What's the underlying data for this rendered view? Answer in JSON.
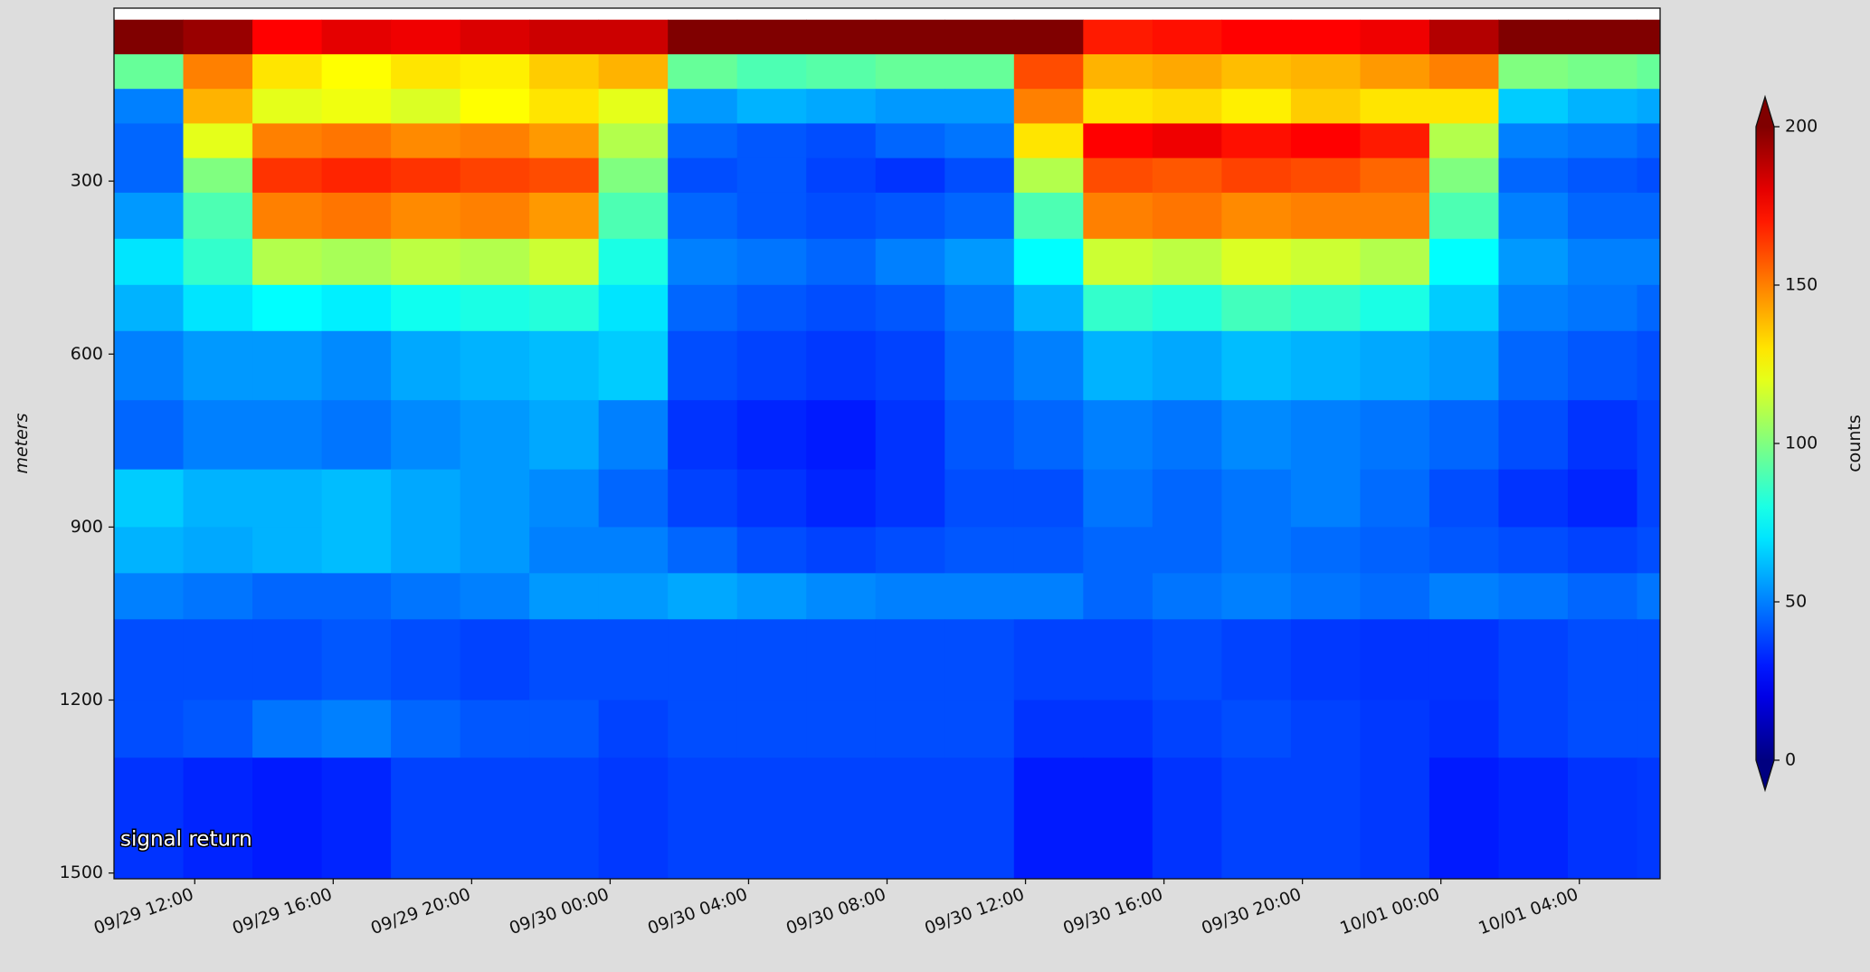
{
  "chart_data": {
    "type": "heatmap",
    "ylabel": "meters",
    "annotation": "signal return",
    "colorbar_label": "counts",
    "colormap": "jet",
    "colorbar_extend": "both",
    "clim": [
      0,
      200
    ],
    "colorbar_ticks": [
      0,
      50,
      100,
      150,
      200
    ],
    "xlim": [
      "09/29 09:40",
      "10/01 06:20"
    ],
    "xticks": [
      "09/29 12:00",
      "09/29 16:00",
      "09/29 20:00",
      "09/30 00:00",
      "09/30 04:00",
      "09/30 08:00",
      "09/30 12:00",
      "09/30 16:00",
      "09/30 20:00",
      "10/01 00:00",
      "10/01 04:00"
    ],
    "ylim": [
      1510,
      0
    ],
    "yticks": [
      300,
      600,
      900,
      1200,
      1500
    ],
    "time_bins": [
      "09/29 09:40",
      "09/29 11:40",
      "09/29 13:40",
      "09/29 15:40",
      "09/29 17:40",
      "09/29 19:40",
      "09/29 21:40",
      "09/29 23:40",
      "09/30 01:40",
      "09/30 03:40",
      "09/30 05:40",
      "09/30 07:40",
      "09/30 09:40",
      "09/30 11:40",
      "09/30 13:40",
      "09/30 15:40",
      "09/30 17:40",
      "09/30 19:40",
      "09/30 21:40",
      "09/30 23:40",
      "10/01 01:40",
      "10/01 03:40",
      "10/01 05:40",
      "10/01 06:20"
    ],
    "depth_bins": [
      20,
      80,
      140,
      200,
      260,
      320,
      400,
      480,
      560,
      680,
      800,
      900,
      980,
      1060,
      1200,
      1300,
      1510
    ],
    "values": [
      [
        200,
        195,
        175,
        180,
        178,
        182,
        185,
        185,
        200,
        200,
        200,
        200,
        200,
        200,
        170,
        172,
        175,
        175,
        178,
        190,
        200,
        200,
        200
      ],
      [
        95,
        150,
        130,
        125,
        130,
        128,
        135,
        140,
        95,
        90,
        92,
        95,
        95,
        160,
        140,
        142,
        138,
        140,
        145,
        150,
        100,
        98,
        95
      ],
      [
        50,
        140,
        120,
        122,
        118,
        125,
        130,
        120,
        55,
        60,
        58,
        55,
        55,
        150,
        130,
        132,
        128,
        135,
        130,
        130,
        65,
        60,
        58
      ],
      [
        45,
        120,
        150,
        152,
        148,
        150,
        145,
        110,
        45,
        42,
        40,
        45,
        48,
        130,
        175,
        178,
        172,
        175,
        170,
        110,
        50,
        48,
        45
      ],
      [
        45,
        100,
        165,
        168,
        165,
        162,
        160,
        100,
        40,
        42,
        38,
        35,
        40,
        110,
        160,
        158,
        162,
        160,
        155,
        100,
        45,
        42,
        40
      ],
      [
        55,
        90,
        150,
        152,
        148,
        150,
        145,
        90,
        45,
        42,
        40,
        42,
        45,
        90,
        150,
        152,
        148,
        150,
        150,
        90,
        50,
        45,
        45
      ],
      [
        70,
        85,
        110,
        108,
        112,
        110,
        115,
        80,
        50,
        48,
        45,
        50,
        55,
        75,
        115,
        112,
        118,
        115,
        110,
        75,
        55,
        50,
        50
      ],
      [
        60,
        70,
        75,
        72,
        78,
        80,
        82,
        70,
        45,
        42,
        40,
        42,
        48,
        60,
        85,
        82,
        88,
        85,
        80,
        65,
        50,
        48,
        45
      ],
      [
        50,
        55,
        55,
        52,
        58,
        60,
        62,
        65,
        40,
        38,
        36,
        38,
        45,
        50,
        60,
        58,
        62,
        60,
        58,
        55,
        45,
        42,
        40
      ],
      [
        45,
        50,
        50,
        48,
        52,
        55,
        58,
        50,
        35,
        32,
        30,
        35,
        42,
        45,
        50,
        48,
        52,
        50,
        48,
        45,
        40,
        35,
        38
      ],
      [
        65,
        60,
        60,
        62,
        58,
        55,
        52,
        45,
        38,
        35,
        32,
        35,
        40,
        40,
        48,
        45,
        48,
        50,
        46,
        40,
        35,
        32,
        38
      ],
      [
        60,
        58,
        60,
        62,
        58,
        55,
        50,
        50,
        45,
        40,
        38,
        40,
        42,
        42,
        45,
        45,
        48,
        46,
        44,
        42,
        40,
        38,
        40
      ],
      [
        50,
        48,
        45,
        45,
        48,
        50,
        55,
        55,
        58,
        55,
        52,
        50,
        50,
        50,
        45,
        48,
        50,
        48,
        46,
        50,
        48,
        45,
        48
      ],
      [
        40,
        40,
        40,
        42,
        40,
        38,
        40,
        40,
        40,
        40,
        40,
        40,
        40,
        38,
        38,
        40,
        38,
        36,
        35,
        35,
        38,
        40,
        40
      ],
      [
        40,
        42,
        48,
        50,
        45,
        42,
        42,
        38,
        40,
        40,
        40,
        40,
        40,
        35,
        35,
        38,
        40,
        38,
        36,
        34,
        38,
        40,
        40
      ],
      [
        35,
        32,
        30,
        32,
        38,
        38,
        38,
        36,
        38,
        38,
        38,
        38,
        38,
        30,
        30,
        35,
        38,
        38,
        36,
        30,
        32,
        35,
        36
      ]
    ]
  }
}
